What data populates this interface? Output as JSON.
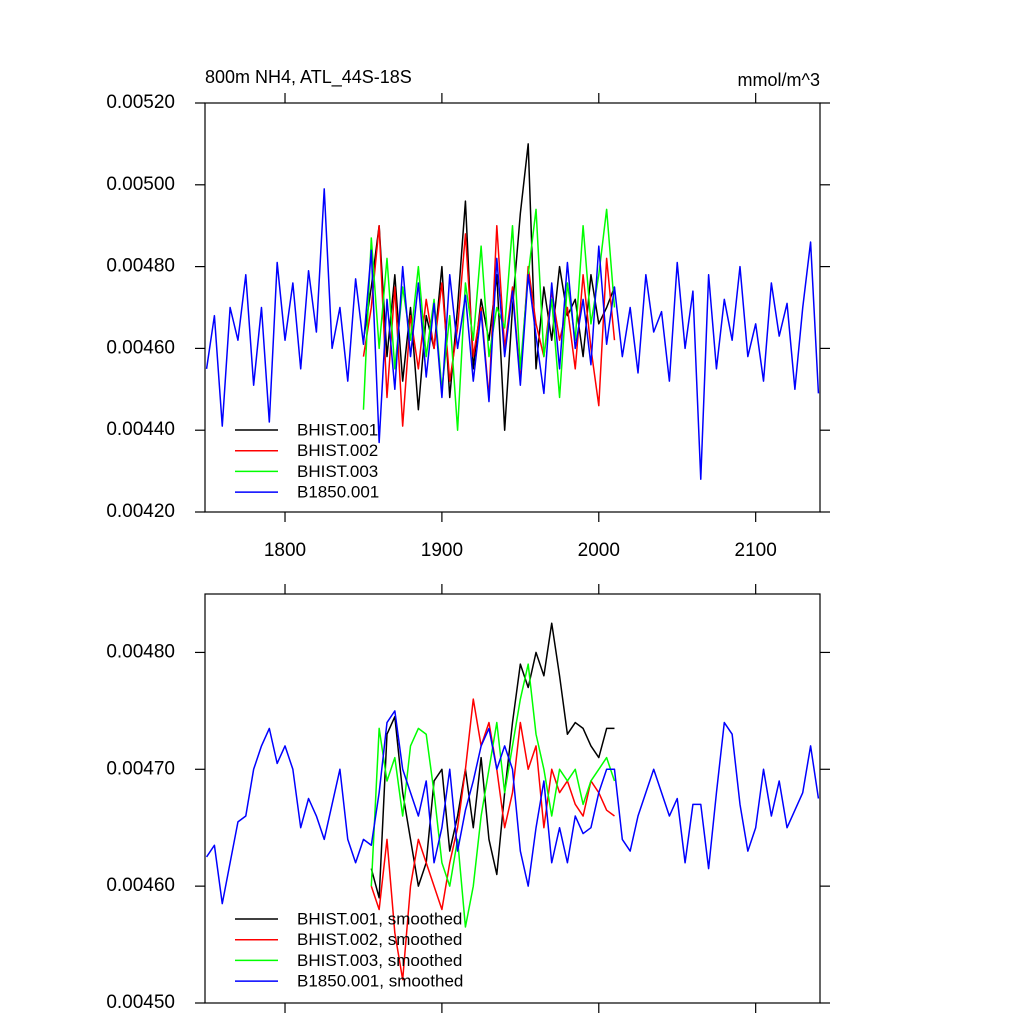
{
  "chart_data": [
    {
      "type": "line",
      "title": "800m NH4, ATL_44S-18S",
      "right_title": "mmol/m^3",
      "x": [
        1750,
        1755,
        1760,
        1765,
        1770,
        1775,
        1780,
        1785,
        1790,
        1795,
        1800,
        1805,
        1810,
        1815,
        1820,
        1825,
        1830,
        1835,
        1840,
        1845,
        1850,
        1855,
        1860,
        1865,
        1870,
        1875,
        1880,
        1885,
        1890,
        1895,
        1900,
        1905,
        1910,
        1915,
        1920,
        1925,
        1930,
        1935,
        1940,
        1945,
        1950,
        1955,
        1960,
        1965,
        1970,
        1975,
        1980,
        1985,
        1990,
        1995,
        2000,
        2005,
        2010,
        2015,
        2020,
        2025,
        2030,
        2035,
        2040,
        2045,
        2050,
        2055,
        2060,
        2065,
        2070,
        2075,
        2080,
        2085,
        2090,
        2095,
        2100,
        2105,
        2110,
        2115,
        2120,
        2125,
        2130,
        2135,
        2140
      ],
      "xlim": [
        1749,
        2141
      ],
      "xticks": [
        1800,
        1900,
        2000,
        2100
      ],
      "ylim": [
        0.0042,
        0.0052
      ],
      "yticks": [
        {
          "value": 0.0042,
          "label": "0.00420"
        },
        {
          "value": 0.0044,
          "label": "0.00440"
        },
        {
          "value": 0.0046,
          "label": "0.00460"
        },
        {
          "value": 0.0048,
          "label": "0.00480"
        },
        {
          "value": 0.005,
          "label": "0.00500"
        },
        {
          "value": 0.0052,
          "label": "0.00520"
        }
      ],
      "series": [
        {
          "name": "BHIST.001",
          "color": "#000000",
          "values": [
            null,
            null,
            null,
            null,
            null,
            null,
            null,
            null,
            null,
            null,
            null,
            null,
            null,
            null,
            null,
            null,
            null,
            null,
            null,
            null,
            0.00462,
            0.00475,
            0.0049,
            0.00458,
            0.00478,
            0.00452,
            0.0047,
            0.00445,
            0.00468,
            0.0046,
            0.0048,
            0.00448,
            0.0047,
            0.00496,
            0.00455,
            0.00472,
            0.00462,
            0.00478,
            0.0044,
            0.0047,
            0.00493,
            0.0051,
            0.00455,
            0.00475,
            0.00462,
            0.0048,
            0.00468,
            0.00472,
            0.00458,
            0.00478,
            0.00466,
            0.0047,
            0.00475,
            null,
            null,
            null,
            null,
            null,
            null,
            null,
            null,
            null,
            null,
            null,
            null,
            null,
            null,
            null,
            null,
            null,
            null,
            null,
            null,
            null,
            null,
            null,
            null,
            null,
            null
          ]
        },
        {
          "name": "BHIST.002",
          "color": "#ff0000",
          "values": [
            null,
            null,
            null,
            null,
            null,
            null,
            null,
            null,
            null,
            null,
            null,
            null,
            null,
            null,
            null,
            null,
            null,
            null,
            null,
            null,
            0.00458,
            0.0047,
            0.0049,
            0.00448,
            0.00475,
            0.00441,
            0.00468,
            0.00455,
            0.00472,
            0.0046,
            0.00476,
            0.00452,
            0.00465,
            0.00488,
            0.00458,
            0.0047,
            0.00448,
            0.0049,
            0.0046,
            0.00475,
            0.00452,
            0.0048,
            0.00466,
            0.00458,
            0.00474,
            0.00462,
            0.0047,
            0.00455,
            0.00478,
            0.0046,
            0.00446,
            0.00482,
            0.00462,
            null,
            null,
            null,
            null,
            null,
            null,
            null,
            null,
            null,
            null,
            null,
            null,
            null,
            null,
            null,
            null,
            null,
            null,
            null,
            null,
            null,
            null,
            null,
            null,
            null,
            null
          ]
        },
        {
          "name": "BHIST.003",
          "color": "#00ff00",
          "values": [
            null,
            null,
            null,
            null,
            null,
            null,
            null,
            null,
            null,
            null,
            null,
            null,
            null,
            null,
            null,
            null,
            null,
            null,
            null,
            null,
            0.00445,
            0.00487,
            0.0046,
            0.00482,
            0.00455,
            0.00475,
            0.00462,
            0.0048,
            0.00458,
            0.00472,
            0.0045,
            0.00468,
            0.0044,
            0.00476,
            0.00462,
            0.00485,
            0.00458,
            0.0047,
            0.00465,
            0.0049,
            0.00455,
            0.00478,
            0.00494,
            0.00458,
            0.00472,
            0.00448,
            0.00476,
            0.00462,
            0.0049,
            0.00466,
            0.00478,
            0.00494,
            0.0047,
            null,
            null,
            null,
            null,
            null,
            null,
            null,
            null,
            null,
            null,
            null,
            null,
            null,
            null,
            null,
            null,
            null,
            null,
            null,
            null,
            null,
            null,
            null,
            null,
            null,
            null
          ]
        },
        {
          "name": "B1850.001",
          "color": "#0000ff",
          "values": [
            0.00455,
            0.00468,
            0.00441,
            0.0047,
            0.00462,
            0.00478,
            0.00451,
            0.0047,
            0.00442,
            0.00481,
            0.00462,
            0.00476,
            0.00455,
            0.00479,
            0.00464,
            0.00499,
            0.0046,
            0.0047,
            0.00452,
            0.00477,
            0.00461,
            0.00484,
            0.00437,
            0.00472,
            0.0045,
            0.0048,
            0.00458,
            0.00476,
            0.00453,
            0.00471,
            0.00448,
            0.00478,
            0.0046,
            0.00473,
            0.00452,
            0.00469,
            0.00447,
            0.00482,
            0.00458,
            0.00474,
            0.00451,
            0.00478,
            0.00463,
            0.00449,
            0.00476,
            0.00455,
            0.00481,
            0.0046,
            0.00472,
            0.00456,
            0.00485,
            0.00461,
            0.00475,
            0.00458,
            0.0047,
            0.00454,
            0.00478,
            0.00464,
            0.00469,
            0.00452,
            0.00481,
            0.0046,
            0.00474,
            0.00428,
            0.00478,
            0.00455,
            0.00472,
            0.00462,
            0.0048,
            0.00458,
            0.00466,
            0.00452,
            0.00476,
            0.00463,
            0.00471,
            0.0045,
            0.0047,
            0.00486,
            0.00449
          ]
        }
      ]
    },
    {
      "type": "line",
      "x": [
        1750,
        1755,
        1760,
        1765,
        1770,
        1775,
        1780,
        1785,
        1790,
        1795,
        1800,
        1805,
        1810,
        1815,
        1820,
        1825,
        1830,
        1835,
        1840,
        1845,
        1850,
        1855,
        1860,
        1865,
        1870,
        1875,
        1880,
        1885,
        1890,
        1895,
        1900,
        1905,
        1910,
        1915,
        1920,
        1925,
        1930,
        1935,
        1940,
        1945,
        1950,
        1955,
        1960,
        1965,
        1970,
        1975,
        1980,
        1985,
        1990,
        1995,
        2000,
        2005,
        2010,
        2015,
        2020,
        2025,
        2030,
        2035,
        2040,
        2045,
        2050,
        2055,
        2060,
        2065,
        2070,
        2075,
        2080,
        2085,
        2090,
        2095,
        2100,
        2105,
        2110,
        2115,
        2120,
        2125,
        2130,
        2135,
        2140
      ],
      "xlim": [
        1749,
        2141
      ],
      "xticks": [
        1800,
        1900,
        2000,
        2100
      ],
      "ylim": [
        0.0045,
        0.00485
      ],
      "yticks": [
        {
          "value": 0.0045,
          "label": "0.00450"
        },
        {
          "value": 0.0046,
          "label": "0.00460"
        },
        {
          "value": 0.0047,
          "label": "0.00470"
        },
        {
          "value": 0.0048,
          "label": "0.00480"
        }
      ],
      "series": [
        {
          "name": "BHIST.001, smoothed",
          "color": "#000000",
          "values": [
            null,
            null,
            null,
            null,
            null,
            null,
            null,
            null,
            null,
            null,
            null,
            null,
            null,
            null,
            null,
            null,
            null,
            null,
            null,
            null,
            null,
            0.004615,
            0.00459,
            0.00473,
            0.004745,
            0.00468,
            0.00464,
            0.0046,
            0.00462,
            0.00469,
            0.0047,
            0.00463,
            0.00466,
            0.0047,
            0.00465,
            0.00471,
            0.00464,
            0.00461,
            0.00468,
            0.00474,
            0.00479,
            0.00477,
            0.0048,
            0.00478,
            0.004825,
            0.00478,
            0.00473,
            0.00474,
            0.004735,
            0.00472,
            0.00471,
            0.004735,
            0.004735,
            null,
            null,
            null,
            null,
            null,
            null,
            null,
            null,
            null,
            null,
            null,
            null,
            null,
            null,
            null,
            null,
            null,
            null,
            null,
            null,
            null,
            null,
            null,
            null,
            null,
            null
          ]
        },
        {
          "name": "BHIST.002, smoothed",
          "color": "#ff0000",
          "values": [
            null,
            null,
            null,
            null,
            null,
            null,
            null,
            null,
            null,
            null,
            null,
            null,
            null,
            null,
            null,
            null,
            null,
            null,
            null,
            null,
            null,
            0.0046,
            0.00458,
            0.00464,
            0.00456,
            0.00452,
            0.0046,
            0.00464,
            0.00462,
            0.0046,
            0.00458,
            0.00462,
            0.00465,
            0.0047,
            0.00476,
            0.00472,
            0.00474,
            0.0047,
            0.00465,
            0.00468,
            0.00474,
            0.0047,
            0.00472,
            0.00465,
            0.0047,
            0.00468,
            0.00469,
            0.00467,
            0.00466,
            0.00469,
            0.00468,
            0.004665,
            0.00466,
            null,
            null,
            null,
            null,
            null,
            null,
            null,
            null,
            null,
            null,
            null,
            null,
            null,
            null,
            null,
            null,
            null,
            null,
            null,
            null,
            null,
            null,
            null,
            null,
            null,
            null
          ]
        },
        {
          "name": "BHIST.003, smoothed",
          "color": "#00ff00",
          "values": [
            null,
            null,
            null,
            null,
            null,
            null,
            null,
            null,
            null,
            null,
            null,
            null,
            null,
            null,
            null,
            null,
            null,
            null,
            null,
            null,
            null,
            0.0046,
            0.004735,
            0.00469,
            0.00471,
            0.00466,
            0.00472,
            0.004735,
            0.00473,
            0.00468,
            0.00462,
            0.0046,
            0.00464,
            0.004565,
            0.0046,
            0.00466,
            0.0047,
            0.00474,
            0.00468,
            0.00472,
            0.00476,
            0.00479,
            0.00473,
            0.0047,
            0.00466,
            0.0047,
            0.00469,
            0.0047,
            0.00467,
            0.00469,
            0.0047,
            0.00471,
            0.00469,
            null,
            null,
            null,
            null,
            null,
            null,
            null,
            null,
            null,
            null,
            null,
            null,
            null,
            null,
            null,
            null,
            null,
            null,
            null,
            null,
            null,
            null,
            null,
            null,
            null,
            null
          ]
        },
        {
          "name": "B1850.001, smoothed",
          "color": "#0000ff",
          "values": [
            0.004625,
            0.004635,
            0.004585,
            0.00462,
            0.004655,
            0.00466,
            0.0047,
            0.00472,
            0.004735,
            0.004705,
            0.00472,
            0.0047,
            0.00465,
            0.004675,
            0.00466,
            0.00464,
            0.00467,
            0.0047,
            0.00464,
            0.00462,
            0.00464,
            0.004635,
            0.00468,
            0.00474,
            0.00475,
            0.0047,
            0.00468,
            0.00466,
            0.00469,
            0.00462,
            0.00465,
            0.0047,
            0.00463,
            0.004665,
            0.00469,
            0.00472,
            0.004735,
            0.0047,
            0.00472,
            0.0047,
            0.00463,
            0.0046,
            0.00465,
            0.00469,
            0.00462,
            0.00465,
            0.00462,
            0.00466,
            0.004645,
            0.00465,
            0.00468,
            0.0047,
            0.0047,
            0.00464,
            0.00463,
            0.00466,
            0.00468,
            0.0047,
            0.00468,
            0.00466,
            0.004675,
            0.00462,
            0.00467,
            0.00467,
            0.004615,
            0.00468,
            0.00474,
            0.00473,
            0.00467,
            0.00463,
            0.00465,
            0.0047,
            0.00466,
            0.00469,
            0.00465,
            0.004665,
            0.00468,
            0.00472,
            0.004675
          ]
        }
      ]
    }
  ]
}
